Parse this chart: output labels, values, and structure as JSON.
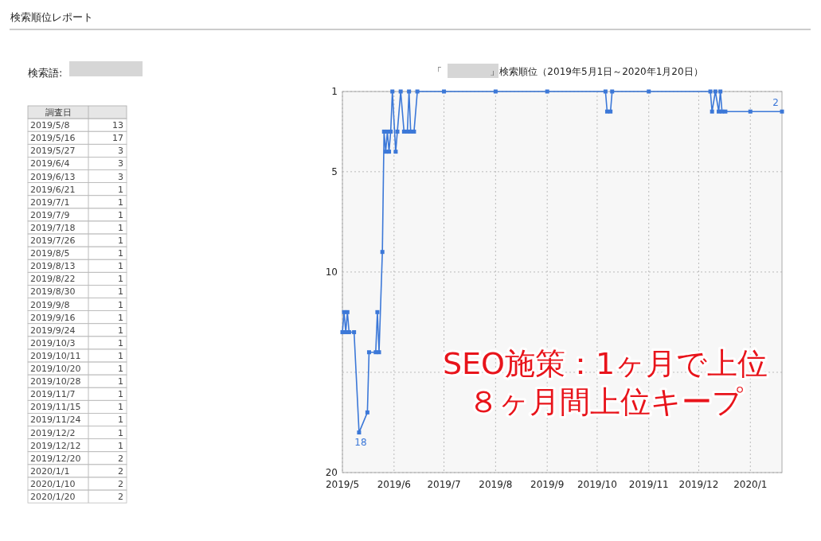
{
  "chart_data": [
    {
      "type": "other",
      "title": "検索順位レポート",
      "xlabel": "調査日",
      "annotations": [
        "検索語:"
      ],
      "categories": [
        "2019/5/8",
        "2019/5/16",
        "2019/5/27",
        "2019/6/4",
        "2019/6/13",
        "2019/6/21",
        "2019/7/1",
        "2019/7/9",
        "2019/7/18",
        "2019/7/26",
        "2019/8/5",
        "2019/8/13",
        "2019/8/22",
        "2019/8/30",
        "2019/9/8",
        "2019/9/16",
        "2019/9/24",
        "2019/10/3",
        "2019/10/11",
        "2019/10/20",
        "2019/10/28",
        "2019/11/7",
        "2019/11/15",
        "2019/11/24",
        "2019/12/2",
        "2019/12/12",
        "2019/12/20",
        "2020/1/1",
        "2020/1/10",
        "2020/1/20"
      ],
      "values": [
        13,
        17,
        3,
        3,
        3,
        1,
        1,
        1,
        1,
        1,
        1,
        1,
        1,
        1,
        1,
        1,
        1,
        1,
        1,
        1,
        1,
        1,
        1,
        1,
        1,
        1,
        2,
        2,
        2,
        2
      ],
      "data_labels": true
    },
    {
      "type": "line",
      "title": "「　　　　　」検索順位（2019年5月1日～2020年1月20日）",
      "x": [
        "2019-05-01",
        "2019-05-02",
        "2019-05-03",
        "2019-05-04",
        "2019-05-05",
        "2019-05-08",
        "2019-05-11",
        "2019-05-16",
        "2019-05-17",
        "2019-05-21",
        "2019-05-22",
        "2019-05-23",
        "2019-05-25",
        "2019-05-26",
        "2019-05-27",
        "2019-05-28",
        "2019-05-29",
        "2019-05-30",
        "2019-05-31",
        "2019-06-02",
        "2019-06-03",
        "2019-06-05",
        "2019-06-07",
        "2019-06-09",
        "2019-06-10",
        "2019-06-11",
        "2019-06-13",
        "2019-06-15",
        "2019-07-01",
        "2019-08-01",
        "2019-09-01",
        "2019-10-06",
        "2019-10-07",
        "2019-10-09",
        "2019-10-10",
        "2019-11-01",
        "2019-12-08",
        "2019-12-09",
        "2019-12-11",
        "2019-12-13",
        "2019-12-14",
        "2019-12-15",
        "2019-12-17",
        "2020-01-01",
        "2020-01-20"
      ],
      "series": [
        {
          "color": "#3c78d8",
          "values": [
            13,
            12,
            13,
            12,
            13,
            13,
            18,
            17,
            14,
            14,
            12,
            14,
            9,
            3,
            4,
            3,
            4,
            3,
            1,
            4,
            3,
            1,
            3,
            3,
            1,
            3,
            3,
            1,
            1,
            1,
            1,
            1,
            2,
            2,
            1,
            1,
            1,
            2,
            1,
            2,
            1,
            2,
            2,
            2,
            2
          ]
        }
      ],
      "marker": "square",
      "grid": true,
      "xlim": [
        "2019-05-01",
        "2020-01-20"
      ],
      "xticks": [
        {
          "value": "2019-05-01",
          "label": "2019/5"
        },
        {
          "value": "2019-06-01",
          "label": "2019/6"
        },
        {
          "value": "2019-07-01",
          "label": "2019/7"
        },
        {
          "value": "2019-08-01",
          "label": "2019/8"
        },
        {
          "value": "2019-09-01",
          "label": "2019/9"
        },
        {
          "value": "2019-10-01",
          "label": "2019/10"
        },
        {
          "value": "2019-11-01",
          "label": "2019/11"
        },
        {
          "value": "2019-12-01",
          "label": "2019/12"
        },
        {
          "value": "2020-01-01",
          "label": "2020/1"
        }
      ],
      "ylim": [
        20,
        1
      ],
      "yticks": [
        1,
        5,
        10,
        {
          "value": 15,
          "label": null
        },
        20
      ],
      "annotations": [
        {
          "text": "18",
          "x": "2019-05-11",
          "y": 18
        },
        {
          "text": "2",
          "x": "2020-01-20",
          "y": 2
        },
        "SEO施策：1ヶ月で上位",
        "８ヶ月間上位キープ"
      ]
    }
  ]
}
